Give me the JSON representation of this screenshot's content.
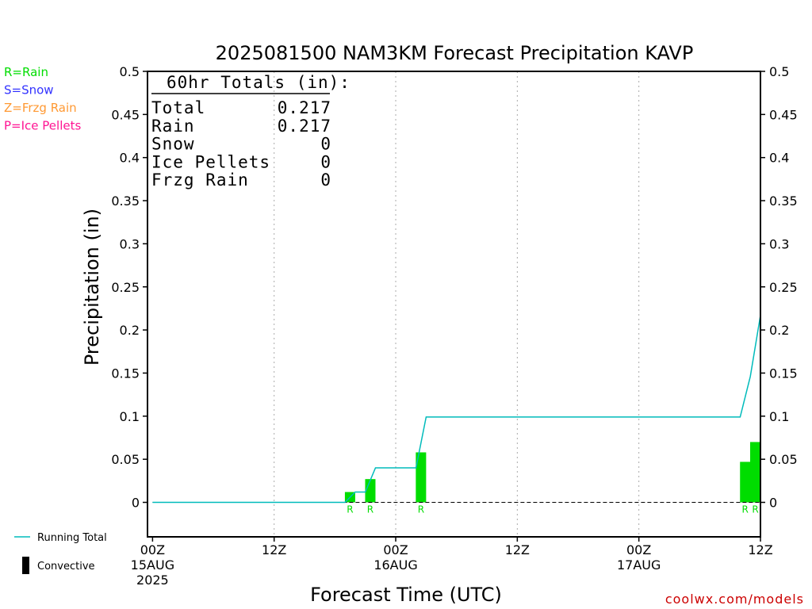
{
  "chart_data": {
    "type": "bar",
    "title": "2025081500 NAM3KM Forecast Precipitation KAVP",
    "xlabel": "Forecast Time (UTC)",
    "ylabel": "Precipitation (in)",
    "ylim": [
      -0.04,
      0.5
    ],
    "y_ticks": [
      "0.5",
      "0.45",
      "0.4",
      "0.35",
      "0.3",
      "0.25",
      "0.2",
      "0.15",
      "0.1",
      "0.05",
      "0"
    ],
    "y_tick_values": [
      0.5,
      0.45,
      0.4,
      0.35,
      0.3,
      0.25,
      0.2,
      0.15,
      0.1,
      0.05,
      0
    ],
    "xlim_hours": [
      -0.5,
      60
    ],
    "x_tick_labels": [
      {
        "hour": 0,
        "lines": [
          "00Z",
          "15AUG",
          "2025"
        ]
      },
      {
        "hour": 12,
        "lines": [
          "12Z"
        ]
      },
      {
        "hour": 24,
        "lines": [
          "00Z",
          "16AUG"
        ]
      },
      {
        "hour": 36,
        "lines": [
          "12Z"
        ]
      },
      {
        "hour": 48,
        "lines": [
          "00Z",
          "17AUG"
        ]
      },
      {
        "hour": 60,
        "lines": [
          "12Z"
        ]
      }
    ],
    "grid_x_hours": [
      12,
      24,
      36,
      48
    ],
    "grid": true,
    "type_legend": [
      {
        "text": "R=Rain",
        "color": "#00dd00"
      },
      {
        "text": "S=Snow",
        "color": "#3333ff"
      },
      {
        "text": "Z=Frzg Rain",
        "color": "#ff9933"
      },
      {
        "text": "P=Ice Pellets",
        "color": "#ff1493"
      }
    ],
    "totals": {
      "header": "60hr Totals (in):",
      "rows": [
        {
          "label": "Total",
          "value": "0.217"
        },
        {
          "label": "Rain",
          "value": "0.217"
        },
        {
          "label": "Snow",
          "value": "0"
        },
        {
          "label": "Ice Pellets",
          "value": "0"
        },
        {
          "label": "Frzg Rain",
          "value": "0"
        }
      ]
    },
    "bars": [
      {
        "hour": 20,
        "value": 0.012,
        "type": "R"
      },
      {
        "hour": 22,
        "value": 0.027,
        "type": "R"
      },
      {
        "hour": 27,
        "value": 0.058,
        "type": "R"
      },
      {
        "hour": 59,
        "value": 0.047,
        "type": "R"
      },
      {
        "hour": 60,
        "value": 0.07,
        "type": "R"
      }
    ],
    "bar_color": "#00dd00",
    "series": [
      {
        "name": "Running Total",
        "color": "#00bbbb",
        "x": [
          0,
          19,
          20,
          21,
          22,
          23,
          24,
          25,
          26,
          27,
          28,
          29,
          30,
          31,
          32,
          33,
          34,
          35,
          36,
          37,
          38,
          39,
          40,
          41,
          42,
          43,
          44,
          45,
          46,
          47,
          48,
          49,
          50,
          51,
          52,
          53,
          54,
          55,
          56,
          57,
          58,
          59,
          60
        ],
        "values": [
          0,
          0,
          0.012,
          0.012,
          0.04,
          0.04,
          0.04,
          0.04,
          0.04,
          0.099,
          0.099,
          0.099,
          0.099,
          0.099,
          0.099,
          0.099,
          0.099,
          0.099,
          0.099,
          0.099,
          0.099,
          0.099,
          0.099,
          0.099,
          0.099,
          0.099,
          0.099,
          0.099,
          0.099,
          0.099,
          0.099,
          0.099,
          0.099,
          0.099,
          0.099,
          0.099,
          0.099,
          0.099,
          0.099,
          0.099,
          0.099,
          0.146,
          0.217
        ]
      }
    ],
    "bottom_legend": [
      {
        "text": "Running Total",
        "kind": "line",
        "color": "#00bbbb"
      },
      {
        "text": "Convective",
        "kind": "bar",
        "color": "#000000"
      }
    ],
    "credit": "coolwx.com/models"
  }
}
